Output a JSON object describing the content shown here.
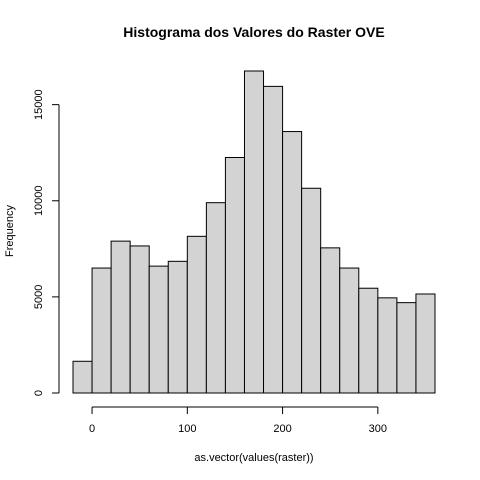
{
  "chart_data": {
    "type": "bar",
    "title": "Histograma dos Valores do Raster OVE",
    "xlabel": "as.vector(values(raster))",
    "ylabel": "Frequency",
    "bin_edges": [
      -20,
      0,
      20,
      40,
      60,
      80,
      100,
      120,
      140,
      160,
      180,
      200,
      220,
      240,
      260,
      280,
      300,
      320,
      340,
      360
    ],
    "values": [
      1650,
      6500,
      7900,
      7650,
      6600,
      6850,
      8150,
      9900,
      12250,
      16750,
      15950,
      13600,
      10650,
      7550,
      6500,
      5450,
      4950,
      4700,
      5150
    ],
    "x_ticks": [
      0,
      100,
      200,
      300
    ],
    "y_ticks": [
      0,
      5000,
      10000,
      15000
    ],
    "xlim": [
      -20,
      360
    ],
    "ylim": [
      0,
      16750
    ],
    "bar_color": "#d3d3d3",
    "grid": false
  }
}
